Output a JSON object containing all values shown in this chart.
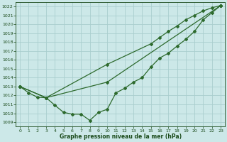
{
  "line1_x": [
    0,
    1,
    2,
    3,
    4,
    5,
    6,
    7,
    8,
    9,
    10,
    11,
    12,
    13,
    14,
    15,
    16,
    17,
    18,
    19,
    20,
    21,
    22,
    23
  ],
  "line1_y": [
    1013.0,
    1012.3,
    1011.8,
    1011.75,
    1010.9,
    1010.1,
    1009.9,
    1009.9,
    1009.2,
    1010.1,
    1010.45,
    1012.3,
    1012.8,
    1013.5,
    1014.0,
    1015.2,
    1016.2,
    1016.75,
    1017.55,
    1018.3,
    1019.2,
    1020.5,
    1021.3,
    1022.1
  ],
  "line2_x": [
    0,
    3,
    10,
    15,
    16,
    17,
    18,
    19,
    20,
    21,
    22,
    23
  ],
  "line2_y": [
    1013.0,
    1011.75,
    1015.5,
    1017.8,
    1018.5,
    1019.2,
    1019.8,
    1020.5,
    1021.0,
    1021.5,
    1021.85,
    1022.1
  ],
  "line3_x": [
    0,
    3,
    10,
    23
  ],
  "line3_y": [
    1013.0,
    1011.75,
    1013.5,
    1022.1
  ],
  "ylim": [
    1008.5,
    1022.5
  ],
  "xlim": [
    -0.5,
    23.5
  ],
  "yticks": [
    1009,
    1010,
    1011,
    1012,
    1013,
    1014,
    1015,
    1016,
    1017,
    1018,
    1019,
    1020,
    1021,
    1022
  ],
  "xticks": [
    0,
    1,
    2,
    3,
    4,
    5,
    6,
    7,
    8,
    9,
    10,
    11,
    12,
    13,
    14,
    15,
    16,
    17,
    18,
    19,
    20,
    21,
    22,
    23
  ],
  "xlabel": "Graphe pression niveau de la mer (hPa)",
  "bg_color": "#cce8e8",
  "grid_color": "#aacece",
  "text_color": "#1a4a1a",
  "line_color": "#2d6a2d",
  "marker": "D",
  "markersize": 2.0,
  "linewidth": 0.9,
  "tick_fontsize": 4.5,
  "xlabel_fontsize": 5.5
}
